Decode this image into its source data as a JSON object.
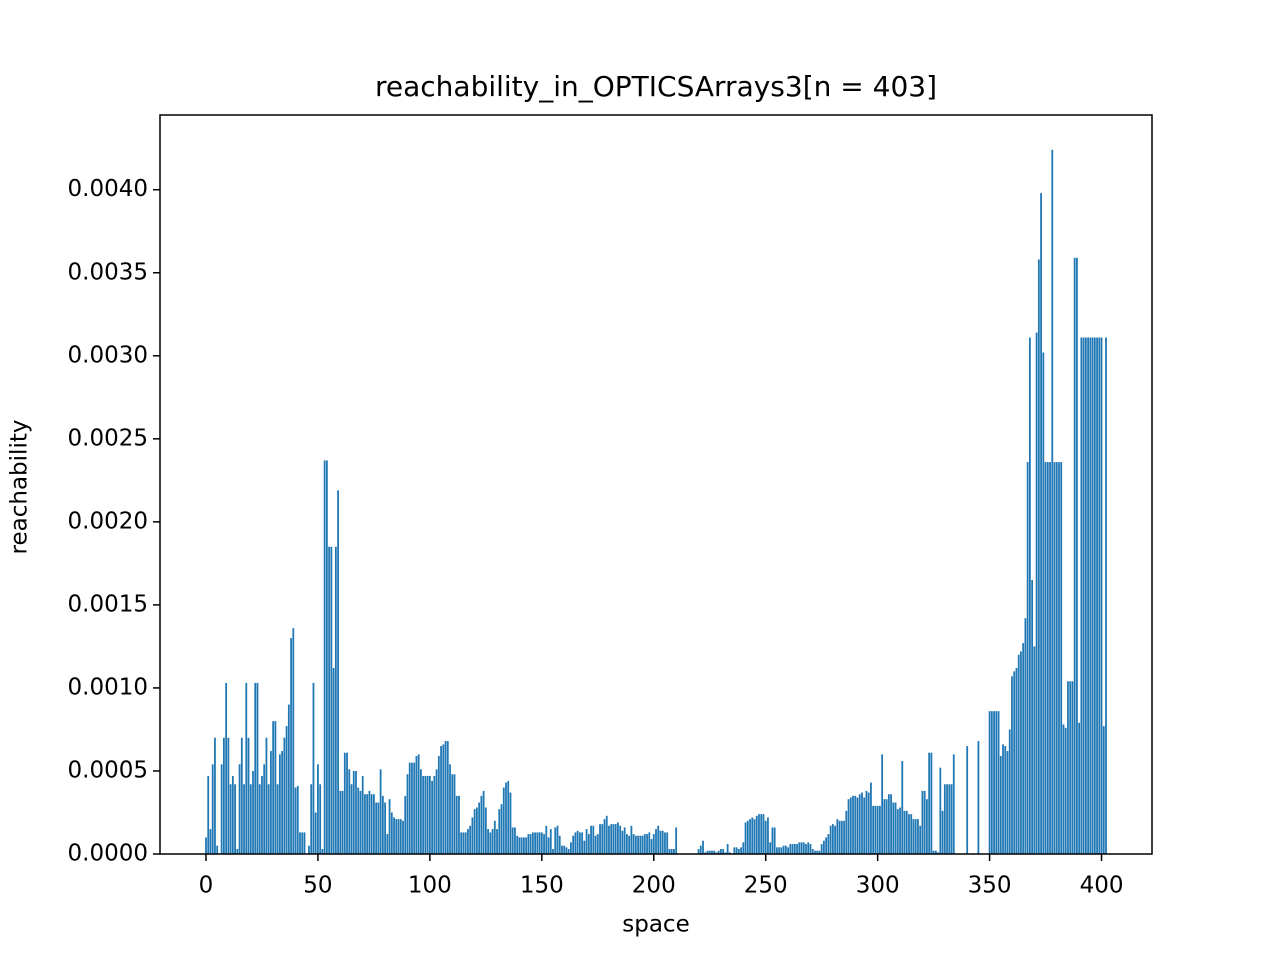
{
  "chart_data": {
    "type": "bar",
    "title": "reachability_in_OPTICSArrays3[n = 403]",
    "x_label": "space",
    "y_label": "reachability",
    "color": "#1f77b4",
    "xlim": [
      -20.54,
      422.54
    ],
    "ylim": [
      0,
      0.00445
    ],
    "xticks": [
      0,
      50,
      100,
      150,
      200,
      250,
      300,
      350,
      400
    ],
    "yticks": [
      {
        "value": 0,
        "label": "0.0000"
      },
      {
        "value": 0.0005,
        "label": "0.0005"
      },
      {
        "value": 0.001,
        "label": "0.0010"
      },
      {
        "value": 0.0015,
        "label": "0.0015"
      },
      {
        "value": 0.002,
        "label": "0.0020"
      },
      {
        "value": 0.0025,
        "label": "0.0025"
      },
      {
        "value": 0.003,
        "label": "0.0030"
      },
      {
        "value": 0.0035,
        "label": "0.0035"
      },
      {
        "value": 0.004,
        "label": "0.0040"
      }
    ],
    "values": [
      0.0001,
      0.00047,
      0.00015,
      0.00054,
      0.0007,
      5e-05,
      0,
      0.00054,
      0.0007,
      0.00103,
      0.0007,
      0.00042,
      0.00047,
      0.00042,
      3e-05,
      0.00054,
      0.0007,
      0.00042,
      0.00103,
      0.0007,
      0.00042,
      0.0005,
      0.00103,
      0.00103,
      0.00042,
      0.00047,
      0.00054,
      0.0007,
      0.00042,
      0.00062,
      0.0008,
      0.0008,
      0.00042,
      0.0006,
      0.00062,
      0.0007,
      0.00077,
      0.0009,
      0.0013,
      0.00136,
      0.0004,
      0.00041,
      0.00013,
      0.00013,
      0.00013,
      0,
      5e-05,
      0.00042,
      0.00103,
      0.00025,
      0.00054,
      0.00042,
      3e-05,
      0.00237,
      0.00237,
      0.00185,
      0.00185,
      0.00112,
      0.00185,
      0.00219,
      0.00038,
      0.00038,
      0.00061,
      0.00061,
      0.00051,
      0.00042,
      0.0005,
      0.0005,
      0.0004,
      0.00038,
      0.00047,
      0.00036,
      0.00036,
      0.00038,
      0.00036,
      0.00036,
      0.00031,
      0.00031,
      0.00051,
      0.00035,
      0.00031,
      0.00012,
      0.00033,
      0.00025,
      0.00022,
      0.00021,
      0.00021,
      0.00021,
      0.0002,
      0.00035,
      0.00048,
      0.00055,
      0.00055,
      0.00055,
      0.00059,
      0.0006,
      0.00051,
      0.00047,
      0.00047,
      0.00047,
      0.00047,
      0.00044,
      0.00047,
      0.00051,
      0.00059,
      0.00065,
      0.00066,
      0.00068,
      0.00068,
      0.00054,
      0.00048,
      0.00048,
      0.00035,
      0.00035,
      0.00013,
      0.00013,
      0.00013,
      0.00015,
      0.00017,
      0.00022,
      0.00027,
      0.00028,
      0.00031,
      0.00035,
      0.00038,
      0.00028,
      0.00015,
      0.00013,
      0.00015,
      0.0002,
      0.00015,
      0.00027,
      0.0003,
      0.0004,
      0.00043,
      0.00044,
      0.00037,
      0.00016,
      0.00016,
      0.00011,
      0.0001,
      0.0001,
      0.0001,
      0.0001,
      0.00012,
      0.00012,
      0.00013,
      0.00013,
      0.00013,
      0.00013,
      0.00013,
      0.00012,
      0.00017,
      0.0001,
      0.00015,
      3e-05,
      0.00016,
      0.00017,
      0.00011,
      5e-05,
      5e-05,
      4e-05,
      3e-05,
      7e-05,
      0.00011,
      0.00013,
      0.00014,
      0.00013,
      0.00013,
      8e-05,
      0.00015,
      0.00012,
      0.00017,
      0.00017,
      0.00011,
      0.00012,
      0.00018,
      0.00018,
      0.00021,
      0.00023,
      0.00017,
      0.00018,
      0.00018,
      0.00018,
      0.00019,
      0.00017,
      0.00014,
      0.00016,
      0.00012,
      0.00011,
      0.00017,
      0.00012,
      0.00011,
      0.00011,
      0.00011,
      0.00011,
      0.00012,
      0.00012,
      0.00013,
      9e-05,
      0.00012,
      0.00015,
      0.00017,
      0.00014,
      0.00014,
      0.00013,
      0.00013,
      3e-05,
      3e-05,
      3e-05,
      0.00016,
      0,
      0,
      0,
      0,
      0,
      0,
      0,
      0,
      0,
      3e-05,
      5e-05,
      8e-05,
      1e-05,
      2e-05,
      2e-05,
      2e-05,
      2e-05,
      1e-05,
      2e-05,
      3e-05,
      3e-05,
      1e-05,
      6e-05,
      1e-05,
      0,
      4e-05,
      4e-05,
      3e-05,
      4e-05,
      7e-05,
      0.00019,
      0.0002,
      0.00021,
      0.00022,
      0.00021,
      0.00023,
      0.00024,
      0.00024,
      0.00024,
      0.0002,
      0.00022,
      7e-05,
      0.00016,
      0.00016,
      4e-05,
      4e-05,
      4e-05,
      5e-05,
      5e-05,
      4e-05,
      6e-05,
      6e-05,
      6e-05,
      6e-05,
      7e-05,
      7e-05,
      7e-05,
      6e-05,
      7e-05,
      6e-05,
      3e-05,
      2e-05,
      2e-05,
      2e-05,
      6e-05,
      8e-05,
      0.0001,
      0.00012,
      0.00017,
      0.00018,
      0.00017,
      0.00021,
      0.0002,
      0.0002,
      0.0002,
      0.00026,
      0.00033,
      0.00034,
      0.00035,
      0.00035,
      0.00034,
      0.00036,
      0.00037,
      0.00034,
      0.00038,
      0.00037,
      0.00043,
      0.00029,
      0.00029,
      0.00029,
      0.00029,
      0.0006,
      0.00033,
      0.00033,
      0.00036,
      0.00036,
      0.00031,
      0.00031,
      0.00027,
      0.00028,
      0.00056,
      0.00026,
      0.00026,
      0.00024,
      0.00024,
      0.00021,
      0.00021,
      0.00021,
      0.00017,
      0.00038,
      0.00038,
      0.00033,
      0.00061,
      0.00061,
      2e-05,
      2e-05,
      1e-05,
      0.00052,
      0.00026,
      0.00042,
      0.00042,
      0.00042,
      0.00042,
      0.0006,
      0,
      0,
      0,
      0,
      0,
      0.00065,
      0,
      0,
      0,
      0,
      0.00068,
      0,
      0,
      0,
      0,
      0.00086,
      0.00086,
      0.00086,
      0.00086,
      0.00086,
      0.00059,
      0.00066,
      0.00065,
      0.00062,
      0.00075,
      0.00107,
      0.0011,
      0.00112,
      0.0012,
      0.00122,
      0.00127,
      0.00142,
      0.00236,
      0.00311,
      0.00165,
      0.00125,
      0.00314,
      0.00358,
      0.00398,
      0.00302,
      0.00236,
      0.00236,
      0.00236,
      0.00424,
      0.00236,
      0.00236,
      0.00236,
      0.00236,
      0.00078,
      0.00076,
      0.00104,
      0.00104,
      0.00104,
      0.00359,
      0.00359,
      0.00079,
      0.00311,
      0.00311,
      0.00311,
      0.00311,
      0.00311,
      0.00311,
      0.00311,
      0.00311,
      0.00311,
      0.00311,
      0.00077,
      0.00311
    ]
  }
}
